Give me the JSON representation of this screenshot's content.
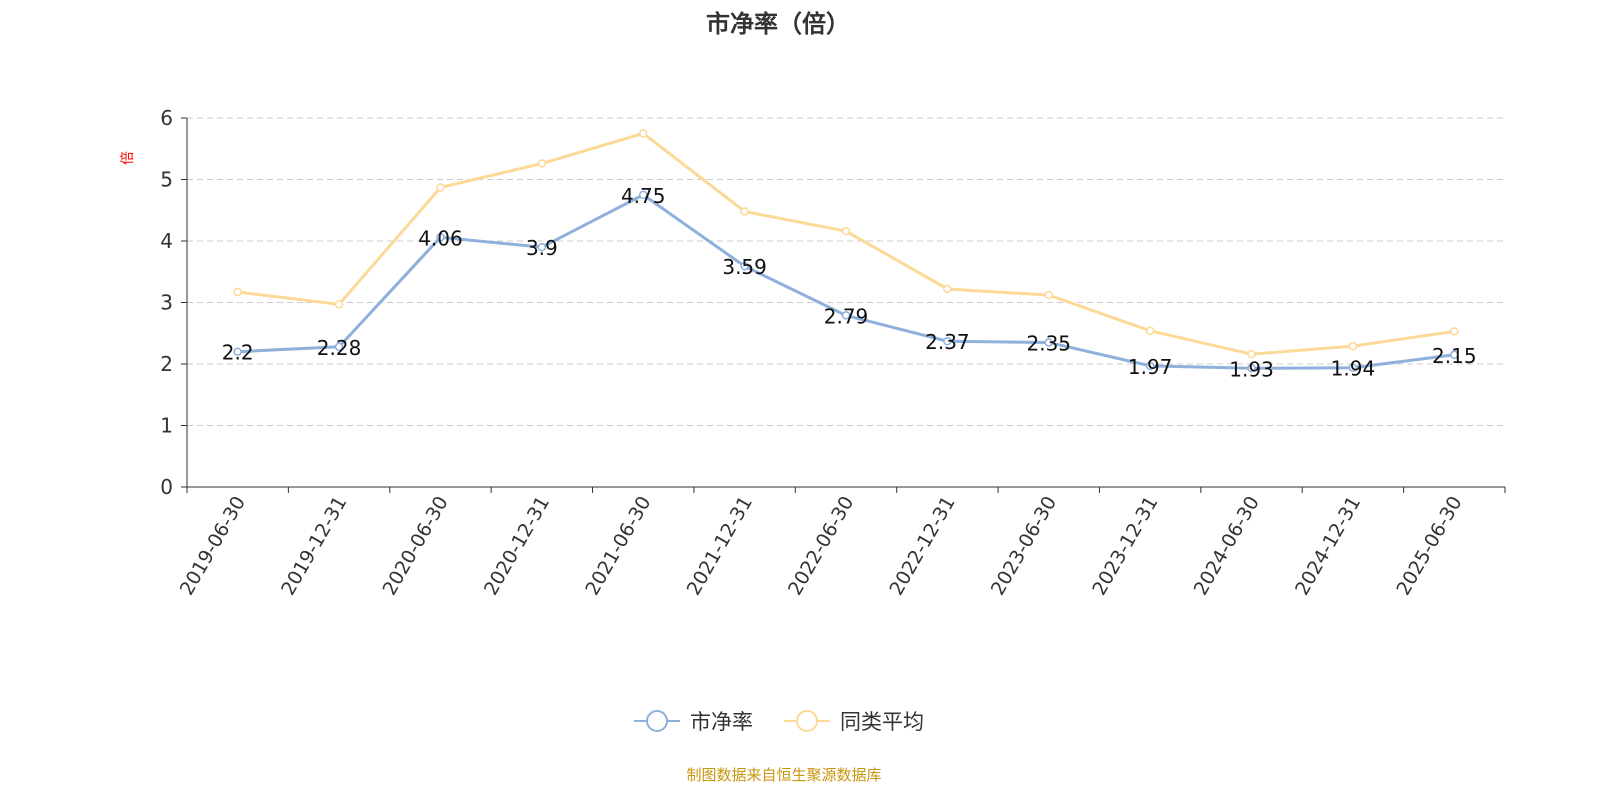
{
  "chart_data": {
    "type": "line",
    "title": "市净率（倍）",
    "ylabel": "倍",
    "xlabel": "",
    "ylim": [
      0,
      6
    ],
    "yticks": [
      0,
      1,
      2,
      3,
      4,
      5,
      6
    ],
    "grid": true,
    "legend_placement": "bottom",
    "categories": [
      "2019-06-30",
      "2019-12-31",
      "2020-06-30",
      "2020-12-31",
      "2021-06-30",
      "2021-12-31",
      "2022-06-30",
      "2022-12-31",
      "2023-06-30",
      "2023-12-31",
      "2024-06-30",
      "2024-12-31",
      "2025-06-30"
    ],
    "series": [
      {
        "name": "市净率",
        "color": "#8eb0dc",
        "show_labels": true,
        "values": [
          2.2,
          2.28,
          4.06,
          3.9,
          4.75,
          3.59,
          2.79,
          2.37,
          2.35,
          1.97,
          1.93,
          1.94,
          2.15
        ]
      },
      {
        "name": "同类平均",
        "color": "#fcd997",
        "show_labels": false,
        "values": [
          3.17,
          2.97,
          4.87,
          5.26,
          5.75,
          4.48,
          4.16,
          3.22,
          3.12,
          2.54,
          2.16,
          2.29,
          2.53
        ]
      }
    ]
  },
  "footer": {
    "source": "制图数据来自恒生聚源数据库"
  },
  "colors": {
    "ylabel": "#ff0000",
    "source": "#c8960c"
  }
}
